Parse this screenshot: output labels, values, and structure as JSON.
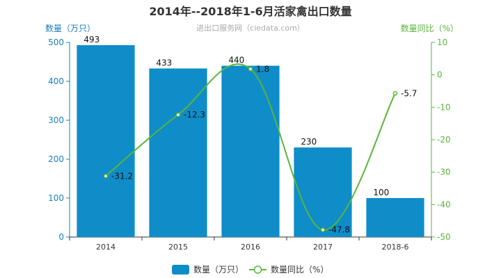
{
  "chart_data": {
    "type": "bar",
    "title": "2014年--2018年1-6月活家禽出口数量",
    "subtitle": "进出口服务网（ciedata.com）",
    "categories": [
      "2014",
      "2015",
      "2016",
      "2017",
      "2018-6"
    ],
    "y_left": {
      "name": "数量（万只）",
      "range": [
        0,
        500
      ],
      "ticks": [
        0,
        100,
        200,
        300,
        400,
        500
      ]
    },
    "y_right": {
      "name": "数量同比（%）",
      "range": [
        -50,
        10
      ],
      "ticks": [
        -50,
        -40,
        -30,
        -20,
        -10,
        0,
        10
      ]
    },
    "series": [
      {
        "name": "数量（万只）",
        "type": "bar",
        "axis": "left",
        "values": [
          493,
          433,
          440,
          230,
          100
        ]
      },
      {
        "name": "数量同比（%）",
        "type": "line",
        "axis": "right",
        "smooth": true,
        "values": [
          -31.2,
          -12.3,
          1.8,
          -47.8,
          -5.7
        ]
      }
    ],
    "legend": "bottom-center",
    "colors": {
      "bar": "#0e8dc9",
      "line": "#5ab53a",
      "left_axis": "#1a7fb8",
      "right_axis": "#5ab53a"
    },
    "grid": false
  }
}
